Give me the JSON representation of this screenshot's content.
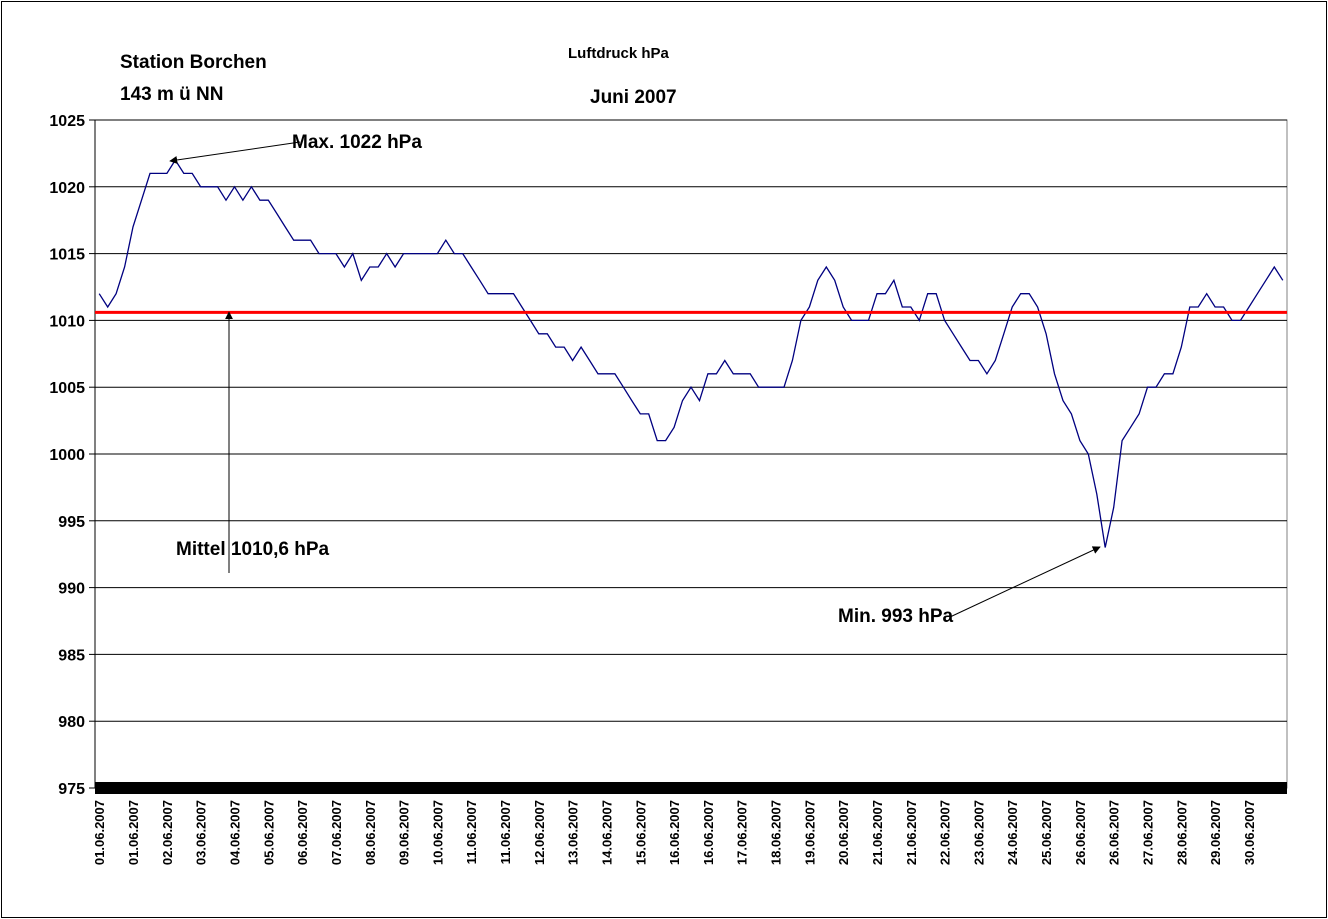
{
  "chart_data": {
    "type": "line",
    "title": "Luftdruck hPa",
    "subtitle": "Juni 2007",
    "station": "Station Borchen",
    "altitude": "143 m ü NN",
    "annotations": {
      "max": "Max. 1022 hPa",
      "min": "Min. 993 hPa",
      "mean": "Mittel 1010,6 hPa"
    },
    "mean_line": {
      "value": 1010.6,
      "color": "#ff0000"
    },
    "ylim": [
      975,
      1025
    ],
    "yticks": [
      975,
      980,
      985,
      990,
      995,
      1000,
      1005,
      1010,
      1015,
      1020,
      1025
    ],
    "grid": true,
    "categories": [
      "01.06.2007",
      null,
      null,
      null,
      "01.06.2007",
      null,
      null,
      null,
      "02.06.2007",
      null,
      null,
      null,
      "03.06.2007",
      null,
      null,
      null,
      "04.06.2007",
      null,
      null,
      null,
      "05.06.2007",
      null,
      null,
      null,
      "06.06.2007",
      null,
      null,
      null,
      "07.06.2007",
      null,
      null,
      null,
      "08.06.2007",
      null,
      null,
      null,
      "09.06.2007",
      null,
      null,
      null,
      "10.06.2007",
      null,
      null,
      null,
      "11.06.2007",
      null,
      null,
      null,
      "11.06.2007",
      null,
      null,
      null,
      "12.06.2007",
      null,
      null,
      null,
      "13.06.2007",
      null,
      null,
      null,
      "14.06.2007",
      null,
      null,
      null,
      "15.06.2007",
      null,
      null,
      null,
      "16.06.2007",
      null,
      null,
      null,
      "16.06.2007",
      null,
      null,
      null,
      "17.06.2007",
      null,
      null,
      null,
      "18.06.2007",
      null,
      null,
      null,
      "19.06.2007",
      null,
      null,
      null,
      "20.06.2007",
      null,
      null,
      null,
      "21.06.2007",
      null,
      null,
      null,
      "21.06.2007",
      null,
      null,
      null,
      "22.06.2007",
      null,
      null,
      null,
      "23.06.2007",
      null,
      null,
      null,
      "24.06.2007",
      null,
      null,
      null,
      "25.06.2007",
      null,
      null,
      null,
      "26.06.2007",
      null,
      null,
      null,
      "26.06.2007",
      null,
      null,
      null,
      "27.06.2007",
      null,
      null,
      null,
      "28.06.2007",
      null,
      null,
      null,
      "29.06.2007",
      null,
      null,
      null,
      "30.06.2007",
      null,
      null,
      null,
      null
    ],
    "series": [
      {
        "color": "#000080",
        "values": [
          1012,
          1011,
          1012,
          1014,
          1017,
          1019,
          1021,
          1021,
          1021,
          1022,
          1021,
          1021,
          1020,
          1020,
          1020,
          1019,
          1020,
          1019,
          1020,
          1019,
          1019,
          1018,
          1017,
          1016,
          1016,
          1016,
          1015,
          1015,
          1015,
          1014,
          1015,
          1013,
          1014,
          1014,
          1015,
          1014,
          1015,
          1015,
          1015,
          1015,
          1015,
          1016,
          1015,
          1015,
          1014,
          1013,
          1012,
          1012,
          1012,
          1012,
          1011,
          1010,
          1009,
          1009,
          1008,
          1008,
          1007,
          1008,
          1007,
          1006,
          1006,
          1006,
          1005,
          1004,
          1003,
          1003,
          1001,
          1001,
          1002,
          1004,
          1005,
          1004,
          1006,
          1006,
          1007,
          1006,
          1006,
          1006,
          1005,
          1005,
          1005,
          1005,
          1007,
          1010,
          1011,
          1013,
          1014,
          1013,
          1011,
          1010,
          1010,
          1010,
          1012,
          1012,
          1013,
          1011,
          1011,
          1010,
          1012,
          1012,
          1010,
          1009,
          1008,
          1007,
          1007,
          1006,
          1007,
          1009,
          1011,
          1012,
          1012,
          1011,
          1009,
          1006,
          1004,
          1003,
          1001,
          1000,
          997,
          993,
          996,
          1001,
          1002,
          1003,
          1005,
          1005,
          1006,
          1006,
          1008,
          1011,
          1011,
          1012,
          1011,
          1011,
          1010,
          1010,
          1011,
          1012,
          1013,
          1014,
          1013
        ]
      }
    ]
  }
}
